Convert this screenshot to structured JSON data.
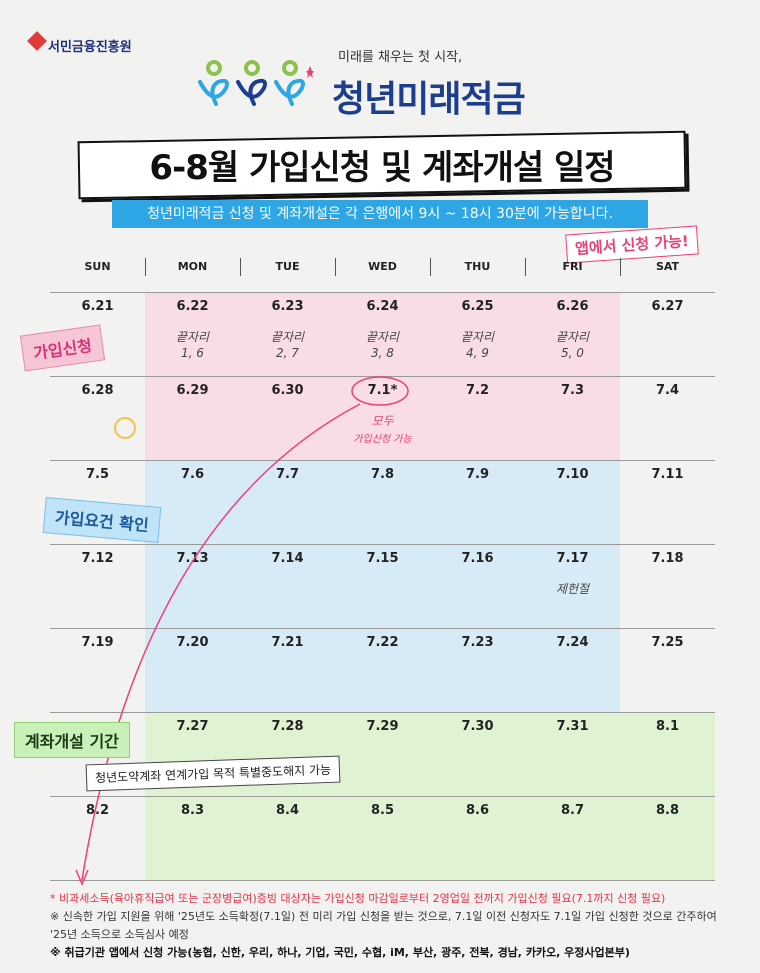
{
  "header": {
    "org": "서민금융진흥원",
    "tagline": "미래를 채우는 첫 시작,",
    "brand": "청년미래적금"
  },
  "title": "6-8월 가입신청 및 계좌개설 일정",
  "subtitle": "청년미래적금 신청 및 계좌개설은 각 은행에서 9시 ~ 18시 30분에 가능합니다.",
  "sticker": "앱에서 신청 가능!",
  "calendar": {
    "days": [
      "SUN",
      "MON",
      "TUE",
      "WED",
      "THU",
      "FRI",
      "SAT"
    ],
    "weeks": [
      [
        {
          "date": "6.21"
        },
        {
          "date": "6.22",
          "note": [
            "끝자리",
            "1, 6"
          ]
        },
        {
          "date": "6.23",
          "note": [
            "끝자리",
            "2, 7"
          ]
        },
        {
          "date": "6.24",
          "note": [
            "끝자리",
            "3, 8"
          ]
        },
        {
          "date": "6.25",
          "note": [
            "끝자리",
            "4, 9"
          ]
        },
        {
          "date": "6.26",
          "note": [
            "끝자리",
            "5, 0"
          ]
        },
        {
          "date": "6.27"
        }
      ],
      [
        {
          "date": "6.28"
        },
        {
          "date": "6.29"
        },
        {
          "date": "6.30"
        },
        {
          "date": "7.1*",
          "note": [
            "모두",
            "가입신청 가능"
          ]
        },
        {
          "date": "7.2"
        },
        {
          "date": "7.3"
        },
        {
          "date": "7.4"
        }
      ],
      [
        {
          "date": "7.5"
        },
        {
          "date": "7.6"
        },
        {
          "date": "7.7"
        },
        {
          "date": "7.8"
        },
        {
          "date": "7.9"
        },
        {
          "date": "7.10"
        },
        {
          "date": "7.11"
        }
      ],
      [
        {
          "date": "7.12"
        },
        {
          "date": "7.13"
        },
        {
          "date": "7.14"
        },
        {
          "date": "7.15"
        },
        {
          "date": "7.16"
        },
        {
          "date": "7.17",
          "note": [
            "제헌절"
          ]
        },
        {
          "date": "7.18"
        }
      ],
      [
        {
          "date": "7.19"
        },
        {
          "date": "7.20"
        },
        {
          "date": "7.21"
        },
        {
          "date": "7.22"
        },
        {
          "date": "7.23"
        },
        {
          "date": "7.24"
        },
        {
          "date": "7.25"
        }
      ],
      [
        null,
        {
          "date": "7.27"
        },
        {
          "date": "7.28"
        },
        {
          "date": "7.29"
        },
        {
          "date": "7.30"
        },
        {
          "date": "7.31"
        },
        {
          "date": "8.1"
        }
      ],
      [
        {
          "date": "8.2"
        },
        {
          "date": "8.3"
        },
        {
          "date": "8.4"
        },
        {
          "date": "8.5"
        },
        {
          "date": "8.6"
        },
        {
          "date": "8.7"
        },
        {
          "date": "8.8"
        }
      ]
    ]
  },
  "labels": {
    "apply": "가입신청",
    "check": "가입요건 확인",
    "open": "계좌개설 기간",
    "special": "청년도약계좌 연계가입 목적 특별중도해지 가능"
  },
  "footnotes": [
    "* 비과세소득(육아휴직급여 또는 군장병급여)증빙 대상자는 가입신청 마감일로부터 2영업일 전까지 가입신청 필요(7.1까지 신청 필요)",
    "※ 신속한 가입 지원을 위해 '25년도 소득확정(7.1일) 전 미리 가입 신청을 받는 것으로, 7.1일 이전 신청자도 7.1일 가입 신청한 것으로 간주하여 '25년 소득으로 소득심사 예정",
    "※ 취급기관 앱에서 신청 가능(농협, 신한, 우리, 하나, 기업, 국민, 수협, iM, 부산, 광주, 전북, 경남, 카카오, 우정사업본부)"
  ]
}
